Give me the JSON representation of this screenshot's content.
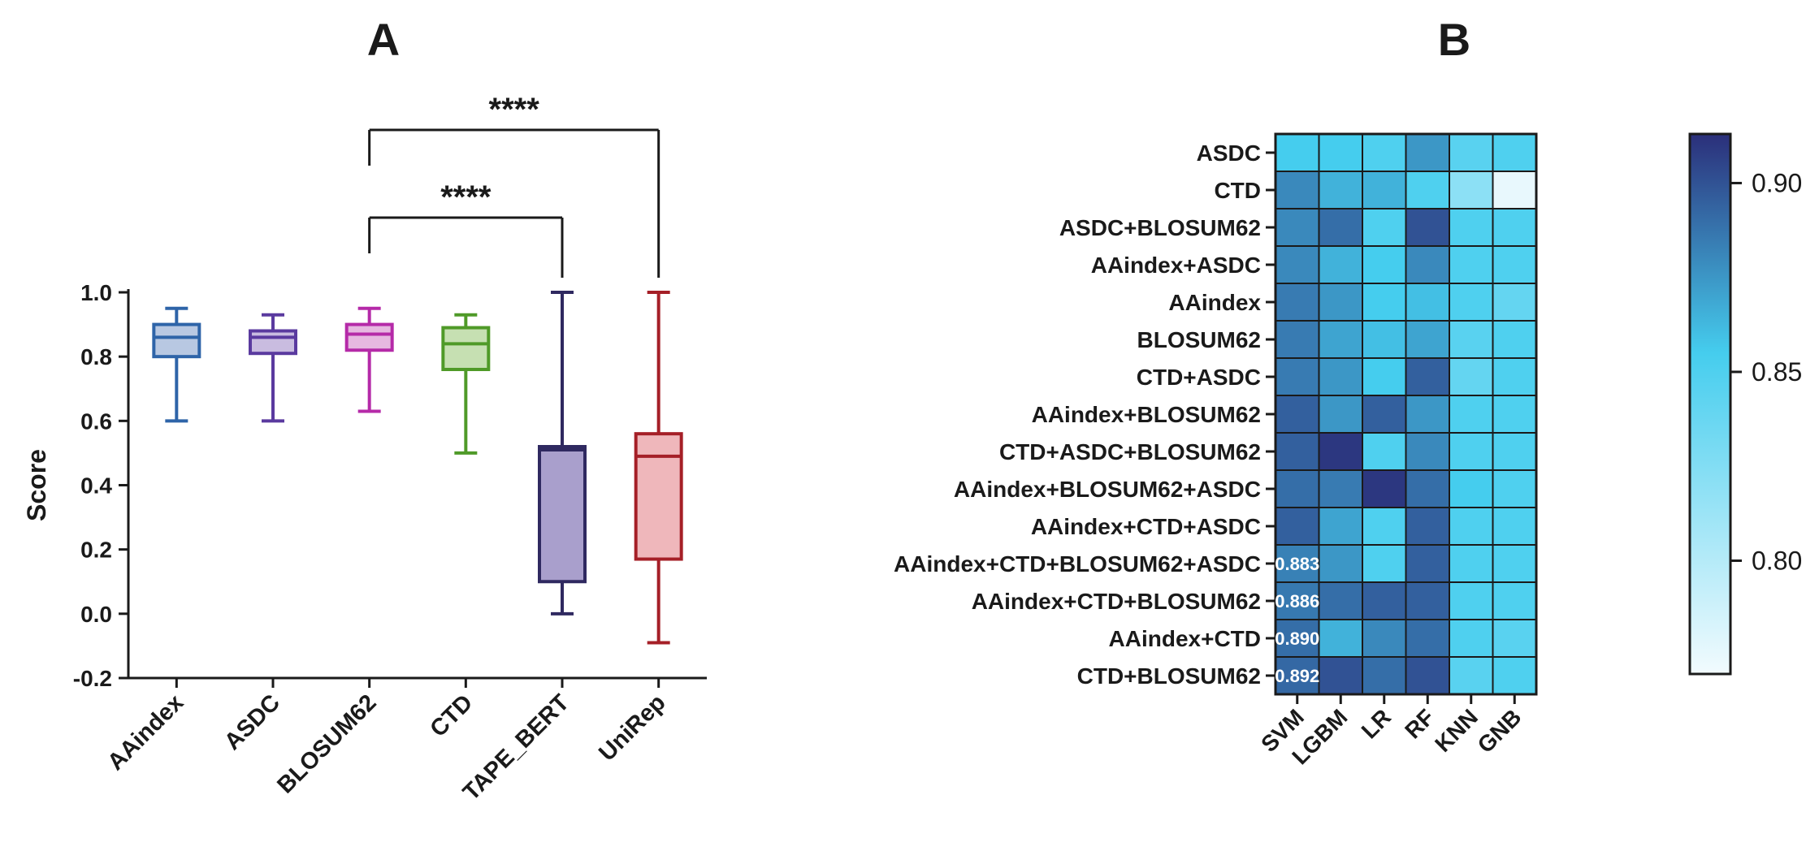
{
  "panels": {
    "a_label": "A",
    "b_label": "B"
  },
  "chart_data": [
    {
      "type": "box",
      "panel": "A",
      "ylabel": "Score",
      "ylim": [
        -0.2,
        1.0
      ],
      "yticks": [
        "-0.2",
        "0.0",
        "0.2",
        "0.4",
        "0.6",
        "0.8",
        "1.0"
      ],
      "categories": [
        "AAindex",
        "ASDC",
        "BLOSUM62",
        "CTD",
        "TAPE_BERT",
        "UniRep"
      ],
      "boxes": [
        {
          "name": "AAindex",
          "min": 0.6,
          "q1": 0.8,
          "median": 0.86,
          "q3": 0.9,
          "max": 0.95,
          "color": "#2e64a8",
          "fill": "#b8c8e2"
        },
        {
          "name": "ASDC",
          "min": 0.6,
          "q1": 0.81,
          "median": 0.86,
          "q3": 0.88,
          "max": 0.93,
          "color": "#5a3a9f",
          "fill": "#c9bce0"
        },
        {
          "name": "BLOSUM62",
          "min": 0.63,
          "q1": 0.82,
          "median": 0.87,
          "q3": 0.9,
          "max": 0.95,
          "color": "#b52aa8",
          "fill": "#e6b8e0"
        },
        {
          "name": "CTD",
          "min": 0.5,
          "q1": 0.76,
          "median": 0.84,
          "q3": 0.89,
          "max": 0.93,
          "color": "#4f9a28",
          "fill": "#c6e0b2"
        },
        {
          "name": "TAPE_BERT",
          "min": 0.0,
          "q1": 0.1,
          "median": 0.51,
          "q3": 0.52,
          "max": 1.0,
          "color": "#2f2960",
          "fill": "#a99fcc"
        },
        {
          "name": "UniRep",
          "min": -0.09,
          "q1": 0.17,
          "median": 0.49,
          "q3": 0.56,
          "max": 1.0,
          "color": "#a51f27",
          "fill": "#efb7bb"
        }
      ],
      "significance": [
        {
          "from": "BLOSUM62",
          "to": "TAPE_BERT",
          "label": "****"
        },
        {
          "from": "BLOSUM62",
          "to": "UniRep",
          "label": "****"
        }
      ]
    },
    {
      "type": "heatmap",
      "panel": "B",
      "columns": [
        "SVM",
        "LGBM",
        "LR",
        "RF",
        "KNN",
        "GNB"
      ],
      "rows": [
        "ASDC",
        "CTD",
        "ASDC+BLOSUM62",
        "AAindex+ASDC",
        "AAindex",
        "BLOSUM62",
        "CTD+ASDC",
        "AAindex+BLOSUM62",
        "CTD+ASDC+BLOSUM62",
        "AAindex+BLOSUM62+ASDC",
        "AAindex+CTD+ASDC",
        "AAindex+CTD+BLOSUM62+ASDC",
        "AAindex+CTD+BLOSUM62",
        "AAindex+CTD",
        "CTD+BLOSUM62"
      ],
      "values": [
        [
          0.855,
          0.855,
          0.85,
          0.875,
          0.845,
          0.85
        ],
        [
          0.88,
          0.865,
          0.865,
          0.85,
          0.82,
          0.775
        ],
        [
          0.88,
          0.89,
          0.85,
          0.9,
          0.85,
          0.85
        ],
        [
          0.88,
          0.865,
          0.855,
          0.88,
          0.85,
          0.85
        ],
        [
          0.885,
          0.875,
          0.855,
          0.86,
          0.85,
          0.84
        ],
        [
          0.885,
          0.87,
          0.86,
          0.87,
          0.845,
          0.85
        ],
        [
          0.885,
          0.875,
          0.855,
          0.895,
          0.84,
          0.85
        ],
        [
          0.895,
          0.875,
          0.895,
          0.875,
          0.85,
          0.85
        ],
        [
          0.895,
          0.91,
          0.85,
          0.88,
          0.85,
          0.85
        ],
        [
          0.89,
          0.885,
          0.91,
          0.89,
          0.855,
          0.85
        ],
        [
          0.895,
          0.87,
          0.85,
          0.895,
          0.85,
          0.85
        ],
        [
          0.883,
          0.875,
          0.85,
          0.895,
          0.85,
          0.85
        ],
        [
          0.886,
          0.89,
          0.895,
          0.895,
          0.85,
          0.85
        ],
        [
          0.89,
          0.865,
          0.88,
          0.89,
          0.85,
          0.845
        ],
        [
          0.892,
          0.9,
          0.89,
          0.9,
          0.845,
          0.85
        ]
      ],
      "cell_labels": [
        {
          "row": 11,
          "col": 0,
          "text": "0.883"
        },
        {
          "row": 12,
          "col": 0,
          "text": "0.886"
        },
        {
          "row": 13,
          "col": 0,
          "text": "0.890"
        },
        {
          "row": 14,
          "col": 0,
          "text": "0.892"
        }
      ],
      "colorbar": {
        "min": 0.77,
        "max": 0.913,
        "ticks": [
          {
            "value": 0.9,
            "label": "0.90"
          },
          {
            "value": 0.85,
            "label": "0.85"
          },
          {
            "value": 0.8,
            "label": "0.80"
          }
        ],
        "color_low": "#f2fbfe",
        "color_mid": "#45cdee",
        "color_high": "#2b2f7a"
      }
    }
  ]
}
